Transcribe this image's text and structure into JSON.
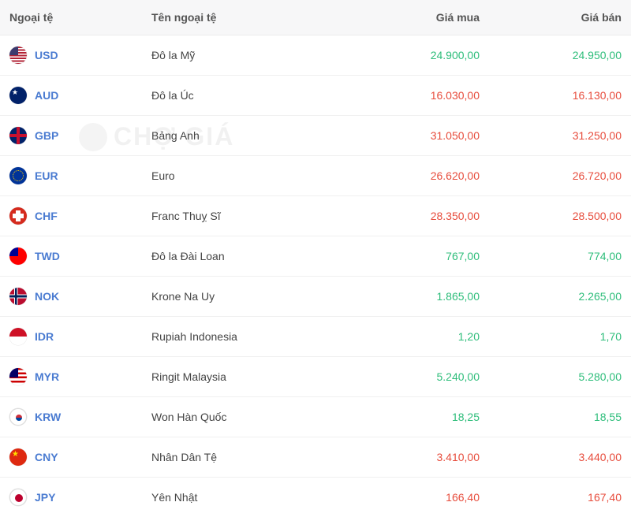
{
  "watermark": {
    "text": "CHỢ GIÁ"
  },
  "table": {
    "headers": {
      "code": "Ngoại tệ",
      "name": "Tên ngoại tệ",
      "buy": "Giá mua",
      "sell": "Giá bán"
    },
    "colors": {
      "up": "#2dbd7a",
      "down": "#e74c3c",
      "link": "#4a7bd1",
      "header_bg": "#f7f7f8",
      "border": "#f0f0f0"
    },
    "rows": [
      {
        "code": "USD",
        "flag": "usd",
        "name": "Đô la Mỹ",
        "buy": "24.900,00",
        "sell": "24.950,00",
        "trend": "up"
      },
      {
        "code": "AUD",
        "flag": "aud",
        "name": "Đô la Úc",
        "buy": "16.030,00",
        "sell": "16.130,00",
        "trend": "down"
      },
      {
        "code": "GBP",
        "flag": "gbp",
        "name": "Bảng Anh",
        "buy": "31.050,00",
        "sell": "31.250,00",
        "trend": "down"
      },
      {
        "code": "EUR",
        "flag": "eur",
        "name": "Euro",
        "buy": "26.620,00",
        "sell": "26.720,00",
        "trend": "down"
      },
      {
        "code": "CHF",
        "flag": "chf",
        "name": "Franc Thuỵ Sĩ",
        "buy": "28.350,00",
        "sell": "28.500,00",
        "trend": "down"
      },
      {
        "code": "TWD",
        "flag": "twd",
        "name": "Đô la Đài Loan",
        "buy": "767,00",
        "sell": "774,00",
        "trend": "up"
      },
      {
        "code": "NOK",
        "flag": "nok",
        "name": "Krone Na Uy",
        "buy": "1.865,00",
        "sell": "2.265,00",
        "trend": "up"
      },
      {
        "code": "IDR",
        "flag": "idr",
        "name": "Rupiah Indonesia",
        "buy": "1,20",
        "sell": "1,70",
        "trend": "up"
      },
      {
        "code": "MYR",
        "flag": "myr",
        "name": "Ringit Malaysia",
        "buy": "5.240,00",
        "sell": "5.280,00",
        "trend": "up"
      },
      {
        "code": "KRW",
        "flag": "krw",
        "name": "Won Hàn Quốc",
        "buy": "18,25",
        "sell": "18,55",
        "trend": "up"
      },
      {
        "code": "CNY",
        "flag": "cny",
        "name": "Nhân Dân Tệ",
        "buy": "3.410,00",
        "sell": "3.440,00",
        "trend": "down"
      },
      {
        "code": "JPY",
        "flag": "jpy",
        "name": "Yên Nhật",
        "buy": "166,40",
        "sell": "167,40",
        "trend": "down"
      }
    ]
  }
}
